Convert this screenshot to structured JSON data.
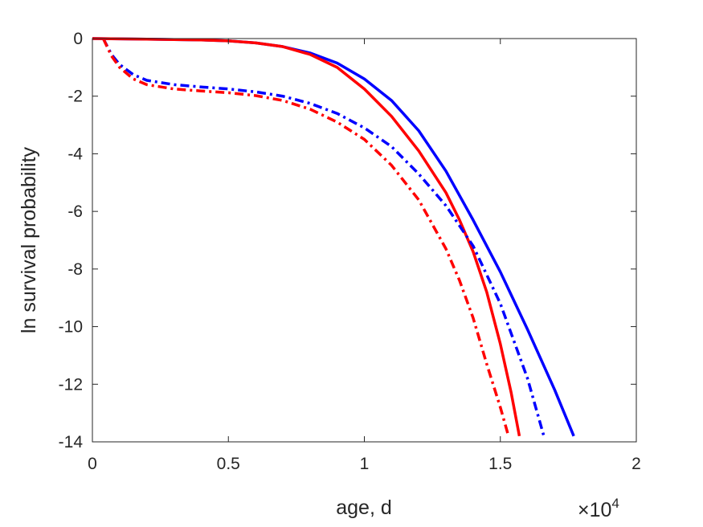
{
  "chart_data": {
    "type": "line",
    "xlabel": "age, d",
    "ylabel": "ln survival probability",
    "x_exponent_label": {
      "base": "×10",
      "exponent": "4"
    },
    "x_scale": 10000,
    "xlim": [
      0,
      20000
    ],
    "ylim": [
      -14,
      0
    ],
    "xticks": [
      0,
      5000,
      10000,
      15000,
      20000
    ],
    "xtick_labels": [
      "0",
      "0.5",
      "1",
      "1.5",
      "2"
    ],
    "yticks": [
      0,
      -2,
      -4,
      -6,
      -8,
      -10,
      -12,
      -14
    ],
    "ytick_labels": [
      "0",
      "-2",
      "-4",
      "-6",
      "-8",
      "-10",
      "-12",
      "-14"
    ],
    "grid": false,
    "series": [
      {
        "color": "#0000ff",
        "style": "solid",
        "x": [
          0,
          2000,
          4000,
          5000,
          6000,
          7000,
          8000,
          9000,
          10000,
          11000,
          12000,
          13000,
          14000,
          15000,
          16000,
          17000,
          17700
        ],
        "y": [
          0,
          -0.02,
          -0.05,
          -0.08,
          -0.15,
          -0.28,
          -0.5,
          -0.85,
          -1.4,
          -2.15,
          -3.2,
          -4.6,
          -6.3,
          -8.1,
          -10.1,
          -12.2,
          -13.8
        ]
      },
      {
        "color": "#ff0000",
        "style": "solid",
        "x": [
          0,
          2000,
          4000,
          5000,
          6000,
          7000,
          8000,
          9000,
          10000,
          11000,
          12000,
          13000,
          13500,
          14000,
          14500,
          15000,
          15400,
          15700
        ],
        "y": [
          0,
          -0.02,
          -0.05,
          -0.08,
          -0.15,
          -0.28,
          -0.55,
          -1.0,
          -1.75,
          -2.7,
          -3.9,
          -5.35,
          -6.3,
          -7.4,
          -8.8,
          -10.6,
          -12.3,
          -13.8
        ]
      },
      {
        "color": "#0000ff",
        "style": "dashdot",
        "x": [
          400,
          700,
          1000,
          1500,
          2000,
          3000,
          4000,
          5000,
          6000,
          7000,
          8000,
          9000,
          10000,
          11000,
          12000,
          13000,
          14000,
          15000,
          16000,
          16600
        ],
        "y": [
          0,
          -0.55,
          -0.9,
          -1.25,
          -1.45,
          -1.6,
          -1.68,
          -1.75,
          -1.85,
          -2.0,
          -2.25,
          -2.6,
          -3.1,
          -3.75,
          -4.7,
          -5.8,
          -7.2,
          -9.2,
          -11.8,
          -13.8
        ]
      },
      {
        "color": "#ff0000",
        "style": "dashdot",
        "x": [
          400,
          700,
          1000,
          1500,
          2000,
          3000,
          4000,
          5000,
          6000,
          7000,
          8000,
          9000,
          10000,
          11000,
          12000,
          13000,
          13500,
          14000,
          14500,
          15000,
          15300
        ],
        "y": [
          0,
          -0.6,
          -1.0,
          -1.4,
          -1.6,
          -1.75,
          -1.82,
          -1.88,
          -1.98,
          -2.15,
          -2.45,
          -2.9,
          -3.5,
          -4.4,
          -5.6,
          -7.3,
          -8.4,
          -9.7,
          -11.3,
          -12.8,
          -13.8
        ]
      }
    ]
  }
}
